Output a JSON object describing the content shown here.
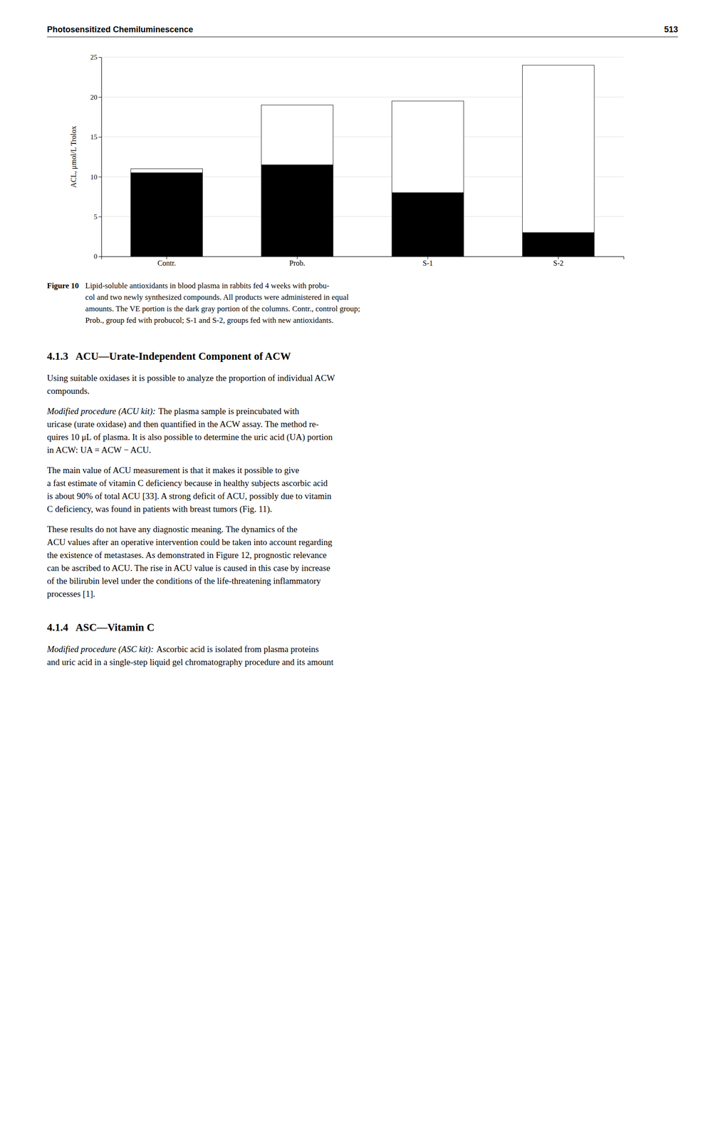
{
  "header": {
    "left": "Photosensitized Chemiluminescence",
    "right": "513"
  },
  "chart_data": {
    "type": "bar",
    "stacked": true,
    "categories": [
      "Contr.",
      "Prob.",
      "S-1",
      "S-2"
    ],
    "series": [
      {
        "color": "#000000",
        "values": [
          10.5,
          11.5,
          8.0,
          3.0
        ]
      },
      {
        "color": "#ffffff",
        "values": [
          0.5,
          7.5,
          11.5,
          21.0
        ]
      }
    ],
    "ylabel": "ACL, μmol/L Trolox",
    "ylim": [
      0,
      25
    ],
    "yticks": [
      0,
      5,
      10,
      15,
      20,
      25
    ],
    "grid": true
  },
  "caption": {
    "label": "Figure 10",
    "lines": [
      "Lipid-soluble antioxidants in blood plasma in rabbits fed 4 weeks with probu-",
      "col and two newly synthesized compounds. All products were administered in equal",
      "amounts. The VE portion is the dark gray portion of the columns. Contr., control group;",
      "Prob., group fed with probucol; S-1 and S-2, groups fed with new antioxidants."
    ]
  },
  "sections": [
    {
      "heading": "4.1.3   ACU—Urate-Independent Component of ACW",
      "paragraphs": [
        {
          "lines": [
            "Using suitable oxidases it is possible to analyze the proportion of individual ACW",
            "compounds."
          ]
        },
        {
          "lead": "Modified procedure (ACU kit):",
          "lines": [
            "The plasma sample is preincubated with",
            "uricase (urate oxidase) and then quantified in the ACW assay. The method re-",
            "quires 10 μL of plasma. It is also possible to determine the uric acid (UA) portion",
            "in ACW: UA = ACW − ACU."
          ]
        },
        {
          "lines": [
            "The main value of ACU measurement is that it makes it possible to give",
            "a fast estimate of vitamin C deficiency because in healthy subjects ascorbic acid",
            "is about 90% of total ACU [33]. A strong deficit of ACU, possibly due to vitamin",
            "C deficiency, was found in patients with breast tumors (Fig. 11)."
          ]
        },
        {
          "lines": [
            "These results do not have any diagnostic meaning. The dynamics of the",
            "ACU values after an operative intervention could be taken into account regarding",
            "the existence of metastases. As demonstrated in Figure 12, prognostic relevance",
            "can be ascribed to ACU. The rise in ACU value is caused in this case by increase",
            "of the bilirubin level under the conditions of the life-threatening inflammatory",
            "processes [1]."
          ]
        }
      ]
    },
    {
      "heading": "4.1.4   ASC—Vitamin C",
      "paragraphs": [
        {
          "lead": "Modified procedure (ASC kit):",
          "lines": [
            "Ascorbic acid is isolated from plasma proteins",
            "and uric acid in a single-step liquid gel chromatography procedure and its amount"
          ]
        }
      ]
    }
  ]
}
